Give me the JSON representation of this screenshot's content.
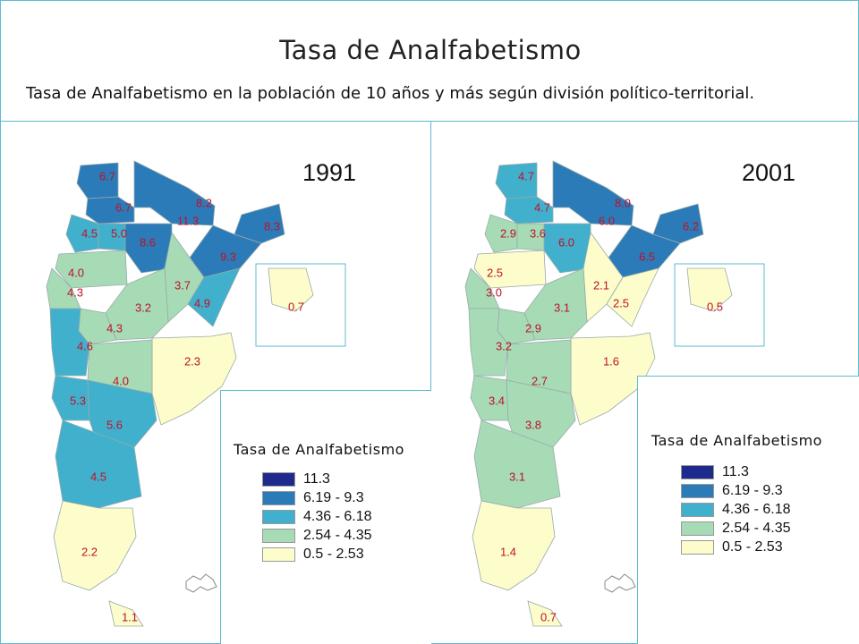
{
  "header": {
    "title": "Tasa de Analfabetismo",
    "subtitle": "Tasa de Analfabetismo en la población de 10 años y más según división político-territorial."
  },
  "classes": [
    {
      "label": "11.3",
      "color": "#1f2b8c"
    },
    {
      "label": "6.19 - 9.3",
      "color": "#2b7bb9"
    },
    {
      "label": "4.36 - 6.18",
      "color": "#41b0cc"
    },
    {
      "label": "2.54 - 4.35",
      "color": "#a6dbb5"
    },
    {
      "label": "0.5 - 2.53",
      "color": "#fdfccb"
    }
  ],
  "maps": [
    {
      "year": "1991",
      "legend_title": "Tasa de Analfabetismo",
      "values": [
        "6.7",
        "6.7",
        "11.3",
        "8.2",
        "8.3",
        "4.5",
        "5.0",
        "8.6",
        "9.3",
        "4.0",
        "4.3",
        "3.7",
        "4.9",
        "3.2",
        "4.3",
        "4.6",
        "0.7",
        "2.3",
        "4.0",
        "5.3",
        "5.6",
        "4.5",
        "2.2",
        "1.1"
      ]
    },
    {
      "year": "2001",
      "legend_title": "Tasa de Analfabetismo",
      "values": [
        "4.7",
        "4.7",
        "6.0",
        "8.0",
        "6.2",
        "2.9",
        "3.6",
        "6.0",
        "6.5",
        "2.5",
        "3.0",
        "2.1",
        "2.5",
        "3.1",
        "2.9",
        "3.2",
        "0.5",
        "1.6",
        "2.7",
        "3.4",
        "3.8",
        "3.1",
        "1.4",
        "0.7"
      ]
    }
  ]
}
